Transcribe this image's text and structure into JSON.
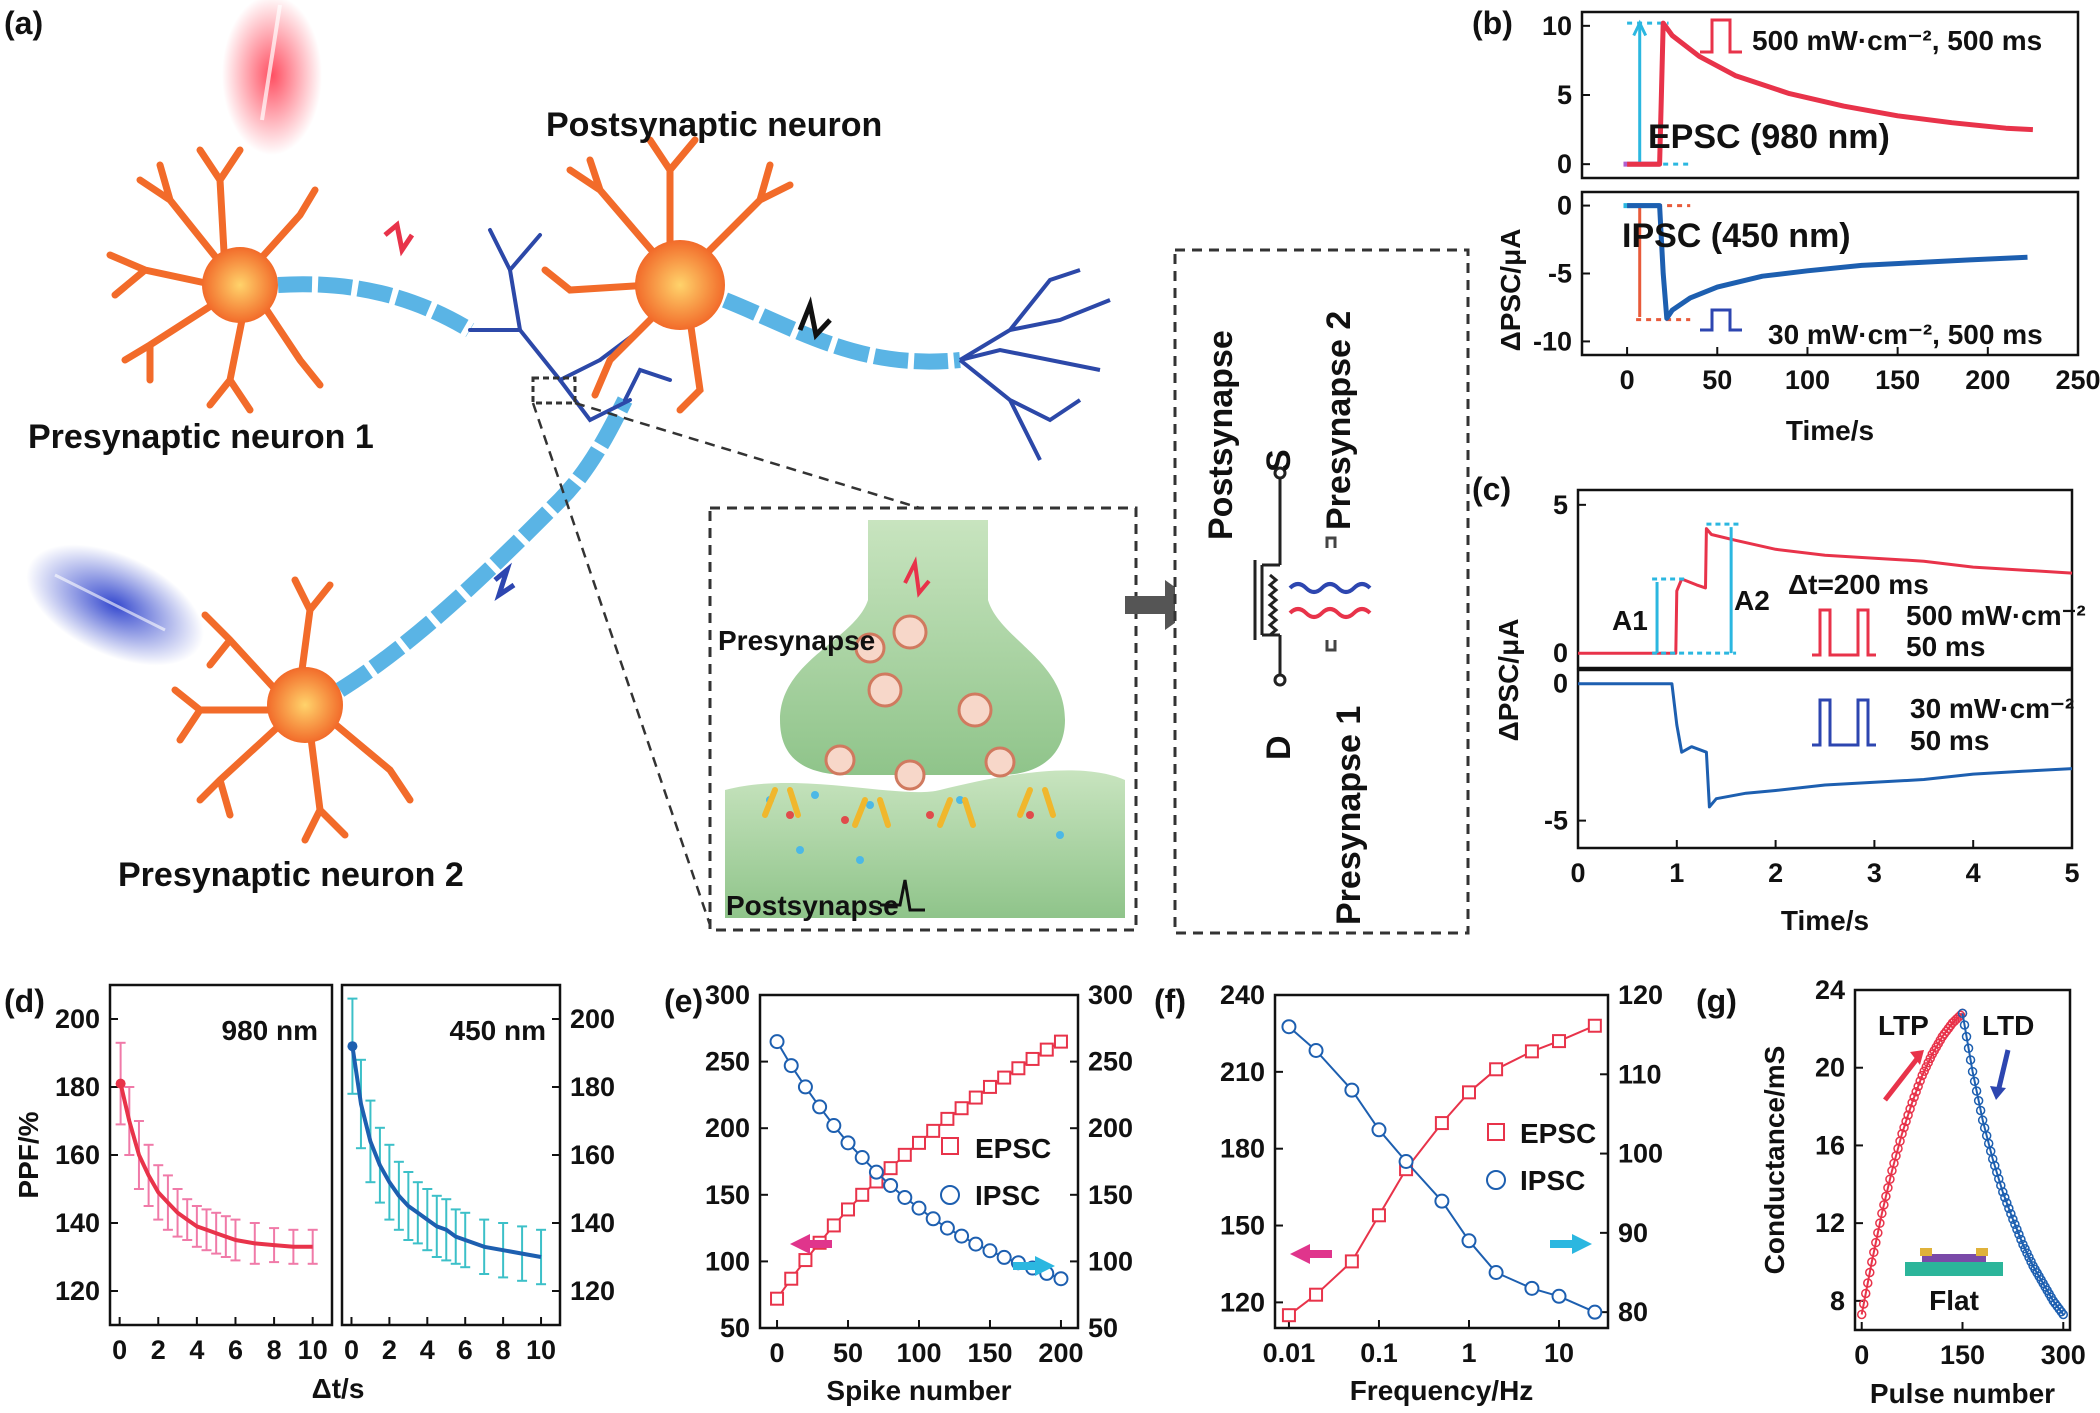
{
  "panel_labels": {
    "a": "(a)",
    "b": "(b)",
    "c": "(c)",
    "d": "(d)",
    "e": "(e)",
    "f": "(f)",
    "g": "(g)"
  },
  "schematic": {
    "postsynaptic_neuron": "Postsynaptic neuron",
    "presynaptic_neuron_1": "Presynaptic neuron 1",
    "presynaptic_neuron_2": "Presynaptic neuron 2",
    "presynapse": "Presynapse",
    "postsynapse": "Postsynapse",
    "device_postsynapse": "Postsynapse",
    "device_presynapse_1": "Presynapse 1",
    "device_presynapse_2": "Presynapse 2",
    "terminal_s": "S",
    "terminal_d": "D",
    "colors": {
      "neuron": "#f26b2a",
      "axon": "#5ab4e5",
      "dendrite": "#2c48a8",
      "soma_glow": "#f6b445",
      "synapse": "#a9d3a1",
      "red_light": "#e8334a",
      "blue_light": "#2d46b0"
    }
  },
  "chart_data": [
    {
      "id": "b_top",
      "type": "line",
      "ylabel": "ΔPSC/μA",
      "ylim": [
        -1,
        11
      ],
      "yticks": [
        0,
        5,
        10
      ],
      "annotation": "EPSC (980 nm)",
      "pulse_label": "500 mW·cm⁻², 500 ms",
      "series": [
        {
          "color": "#e8334a",
          "x": [
            0,
            18,
            19,
            20,
            25,
            40,
            60,
            90,
            120,
            150,
            180,
            210,
            225
          ],
          "values": [
            0,
            0,
            5,
            10.2,
            9.3,
            7.8,
            6.4,
            5.1,
            4.2,
            3.5,
            3.0,
            2.6,
            2.5
          ]
        }
      ]
    },
    {
      "id": "b_bottom",
      "type": "line",
      "xlabel": "Time/s",
      "ylabel": "ΔPSC/μA",
      "xlim": [
        -25,
        250
      ],
      "ylim": [
        -11,
        1
      ],
      "xticks": [
        0,
        50,
        100,
        150,
        200,
        250
      ],
      "yticks": [
        0,
        -5,
        -10
      ],
      "annotation": "IPSC (450 nm)",
      "pulse_label": "30 mW·cm⁻², 500 ms",
      "series": [
        {
          "color": "#1d5fb0",
          "x": [
            0,
            18,
            20,
            22,
            25,
            35,
            50,
            75,
            100,
            130,
            160,
            190,
            222
          ],
          "values": [
            0,
            0,
            -5,
            -8.3,
            -7.7,
            -6.8,
            -6.0,
            -5.2,
            -4.8,
            -4.4,
            -4.2,
            -4.0,
            -3.8
          ]
        }
      ]
    },
    {
      "id": "c_top",
      "type": "line",
      "ylabel": "ΔPSC/μA",
      "ylim": [
        -0.5,
        5.5
      ],
      "yticks": [
        0,
        5
      ],
      "a1_label": "A1",
      "a2_label": "A2",
      "dt_label": "Δt=200 ms",
      "pulse_label_1": "500 mW·cm⁻²",
      "pulse_label_2": "50 ms",
      "series": [
        {
          "color": "#e8334a",
          "x": [
            0,
            0.99,
            1.0,
            1.05,
            1.2,
            1.29,
            1.3,
            1.35,
            1.6,
            2.0,
            2.5,
            3.0,
            3.5,
            4.0,
            4.5,
            5.0
          ],
          "values": [
            0,
            0,
            2.1,
            2.5,
            2.3,
            2.2,
            4.2,
            4.0,
            3.8,
            3.5,
            3.3,
            3.2,
            3.1,
            2.9,
            2.8,
            2.7
          ]
        }
      ]
    },
    {
      "id": "c_bottom",
      "type": "line",
      "xlabel": "Time/s",
      "ylabel": "ΔPSC/μA",
      "xlim": [
        0,
        5
      ],
      "ylim": [
        -6,
        0.5
      ],
      "xticks": [
        0,
        1,
        2,
        3,
        4,
        5
      ],
      "yticks": [
        0,
        -5
      ],
      "pulse_label_1": "30 mW·cm⁻²",
      "pulse_label_2": "50 ms",
      "series": [
        {
          "color": "#1d5fb0",
          "x": [
            0,
            0.95,
            1.0,
            1.05,
            1.15,
            1.3,
            1.33,
            1.4,
            1.7,
            2.0,
            2.5,
            3.0,
            3.5,
            4.0,
            4.5,
            5.0
          ],
          "values": [
            0,
            0,
            -1.5,
            -2.5,
            -2.3,
            -2.5,
            -4.5,
            -4.2,
            -4.0,
            -3.9,
            -3.7,
            -3.6,
            -3.5,
            -3.3,
            -3.2,
            -3.1
          ]
        }
      ]
    },
    {
      "id": "d_left",
      "type": "line",
      "label": "980 nm",
      "ylabel": "PPF/%",
      "ylim": [
        110,
        210
      ],
      "yticks": [
        120,
        140,
        160,
        180,
        200
      ],
      "xlim": [
        -0.5,
        11
      ],
      "xticks": [
        0,
        2,
        4,
        6,
        8,
        10
      ],
      "series": [
        {
          "color": "#e8334a",
          "x": [
            0.05,
            0.5,
            1,
            1.5,
            2,
            2.5,
            3,
            3.5,
            4,
            4.5,
            5,
            5.5,
            6,
            7,
            8,
            9,
            10
          ],
          "values": [
            181,
            170,
            160,
            154,
            149,
            146,
            143,
            141,
            139,
            138,
            137,
            136,
            135,
            134,
            133.5,
            133,
            133
          ],
          "err": [
            12,
            10,
            10,
            9,
            8,
            8,
            7,
            6,
            6,
            6,
            6,
            6,
            6,
            6,
            5,
            5,
            5
          ]
        }
      ]
    },
    {
      "id": "d_right",
      "type": "line",
      "label": "450 nm",
      "xlabel": "Δt/s",
      "ylim": [
        110,
        210
      ],
      "yticks": [
        120,
        140,
        160,
        180,
        200
      ],
      "xlim": [
        -0.5,
        11
      ],
      "xticks": [
        0,
        2,
        4,
        6,
        8,
        10
      ],
      "series": [
        {
          "color": "#1d5fb0",
          "x": [
            0.05,
            0.5,
            1,
            1.5,
            2,
            2.5,
            3,
            3.5,
            4,
            4.5,
            5,
            5.5,
            6,
            7,
            8,
            9,
            10
          ],
          "values": [
            192,
            175,
            164,
            157,
            152,
            148,
            145,
            143,
            141,
            139,
            138,
            136,
            135,
            133,
            132,
            131,
            130
          ],
          "err": [
            14,
            13,
            12,
            11,
            11,
            10,
            10,
            9,
            9,
            9,
            9,
            8,
            8,
            8,
            8,
            8,
            8
          ]
        }
      ]
    },
    {
      "id": "e",
      "type": "line",
      "xlabel": "Spike number",
      "xlim": [
        -12,
        212
      ],
      "xticks": [
        0,
        50,
        100,
        150,
        200
      ],
      "ylim_left": [
        50,
        300
      ],
      "yticks_left": [
        50,
        100,
        150,
        200,
        250,
        300
      ],
      "ylim_right": [
        50,
        300
      ],
      "yticks_right": [
        50,
        100,
        150,
        200,
        250,
        300
      ],
      "legend": [
        "EPSC",
        "IPSC"
      ],
      "series": [
        {
          "name": "EPSC",
          "color": "#e8334a",
          "marker": "square",
          "x": [
            0,
            10,
            20,
            30,
            40,
            50,
            60,
            70,
            80,
            90,
            100,
            110,
            120,
            130,
            140,
            150,
            160,
            170,
            180,
            190,
            200
          ],
          "values": [
            72,
            87,
            101,
            114,
            127,
            139,
            150,
            160,
            170,
            180,
            189,
            198,
            207,
            215,
            223,
            231,
            238,
            245,
            252,
            259,
            265
          ]
        },
        {
          "name": "IPSC",
          "color": "#1d5fb0",
          "marker": "circle",
          "x": [
            0,
            10,
            20,
            30,
            40,
            50,
            60,
            70,
            80,
            90,
            100,
            110,
            120,
            130,
            140,
            150,
            160,
            170,
            180,
            190,
            200
          ],
          "values": [
            265,
            247,
            231,
            216,
            202,
            189,
            178,
            167,
            157,
            148,
            140,
            132,
            125,
            119,
            113,
            108,
            103,
            99,
            95,
            91,
            87
          ]
        }
      ]
    },
    {
      "id": "f",
      "type": "line",
      "xlabel": "Frequency/Hz",
      "xscale": "log",
      "xlim": [
        0.007,
        35
      ],
      "xticks": [
        0.01,
        0.1,
        1,
        10
      ],
      "xtick_labels": [
        "0.01",
        "0.1",
        "1",
        "10"
      ],
      "ylim_left": [
        110,
        240
      ],
      "yticks_left": [
        120,
        150,
        180,
        210,
        240
      ],
      "ylim_right": [
        78,
        120
      ],
      "yticks_right": [
        80,
        90,
        100,
        110,
        120
      ],
      "legend": [
        "EPSC",
        "IPSC"
      ],
      "series": [
        {
          "name": "EPSC",
          "color": "#e8334a",
          "marker": "square",
          "x": [
            0.01,
            0.02,
            0.05,
            0.1,
            0.2,
            0.5,
            1,
            2,
            5,
            10,
            25
          ],
          "values": [
            115,
            123,
            136,
            154,
            172,
            190,
            202,
            211,
            218,
            222,
            228
          ]
        },
        {
          "name": "IPSC",
          "color": "#1d5fb0",
          "marker": "circle",
          "x": [
            0.01,
            0.02,
            0.05,
            0.1,
            0.2,
            0.5,
            1,
            2,
            5,
            10,
            25
          ],
          "values": [
            116,
            113,
            108,
            103,
            99,
            94,
            89,
            85,
            83,
            82,
            80
          ]
        }
      ]
    },
    {
      "id": "g",
      "type": "scatter",
      "xlabel": "Pulse number",
      "ylabel": "Conductance/mS",
      "xlim": [
        -10,
        310
      ],
      "xticks": [
        0,
        150,
        300
      ],
      "ylim": [
        6.5,
        24
      ],
      "yticks": [
        8,
        12,
        16,
        20,
        24
      ],
      "ltp_label": "LTP",
      "ltd_label": "LTD",
      "inset_label": "Flat",
      "series": [
        {
          "name": "LTP",
          "color": "#e8334a",
          "x": [
            0,
            15,
            30,
            45,
            60,
            75,
            90,
            105,
            120,
            135,
            150
          ],
          "values": [
            7.3,
            10.0,
            12.5,
            14.7,
            16.6,
            18.2,
            19.6,
            20.7,
            21.6,
            22.3,
            22.8
          ]
        },
        {
          "name": "LTD",
          "color": "#1d5fb0",
          "x": [
            150,
            165,
            180,
            195,
            210,
            225,
            240,
            255,
            270,
            285,
            300
          ],
          "values": [
            22.8,
            19.8,
            17.3,
            15.3,
            13.6,
            12.2,
            10.9,
            9.8,
            8.9,
            8.0,
            7.3
          ]
        }
      ]
    }
  ]
}
